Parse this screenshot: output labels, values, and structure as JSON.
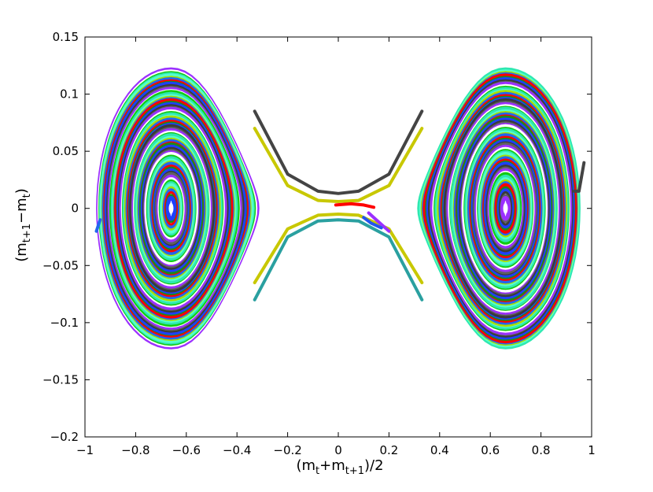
{
  "chart_data": {
    "type": "line",
    "description_of_marks": "phase-space orbits: closed concentric loops around two centres plus open separatrix-like curves through the saddle",
    "xlabel": {
      "base": "(m",
      "s1": "t",
      "mid": "+m",
      "s2": "t+1",
      "tail": ")/2"
    },
    "ylabel": {
      "base": "(m",
      "s1": "t+1",
      "mid": "−m",
      "s2": "t",
      "tail": ")"
    },
    "xlim": [
      -1,
      1
    ],
    "ylim": [
      -0.2,
      0.15
    ],
    "xticks": [
      -1,
      -0.8,
      -0.6,
      -0.4,
      -0.2,
      0,
      0.2,
      0.4,
      0.6,
      0.8,
      1
    ],
    "xtick_labels": [
      "−1",
      "−0.8",
      "−0.6",
      "−0.4",
      "−0.2",
      "0",
      "0.2",
      "0.4",
      "0.6",
      "0.8",
      "1"
    ],
    "yticks": [
      -0.2,
      -0.15,
      -0.1,
      -0.05,
      0,
      0.05,
      0.1,
      0.15
    ],
    "ytick_labels": [
      "−0.2",
      "−0.15",
      "−0.1",
      "−0.05",
      "0",
      "0.05",
      "0.1",
      "0.15"
    ],
    "grid": false,
    "centers": [
      {
        "x": -0.66,
        "y": 0
      },
      {
        "x": 0.66,
        "y": 0
      }
    ],
    "orbit_extent": {
      "x_half_width": [
        0.008,
        0.29
      ],
      "y_half_height": [
        0.006,
        0.122
      ]
    },
    "orbit_colors": [
      "#1f3fff",
      "#11cc11",
      "#ff0000",
      "#9b30ff",
      "#aadd00",
      "#3a3a3a",
      "#2ee8b0",
      "#1a8a1a",
      "#ffffff",
      "#2266ee",
      "#606060",
      "#55ffcc"
    ],
    "open_curves": [
      {
        "color": "#444444",
        "points": [
          [
            -0.33,
            0.085
          ],
          [
            -0.2,
            0.03
          ],
          [
            -0.08,
            0.015
          ],
          [
            0,
            0.013
          ],
          [
            0.08,
            0.015
          ],
          [
            0.2,
            0.03
          ],
          [
            0.33,
            0.085
          ]
        ]
      },
      {
        "color": "#c8c800",
        "points": [
          [
            -0.33,
            0.07
          ],
          [
            -0.2,
            0.02
          ],
          [
            -0.08,
            0.007
          ],
          [
            0,
            0.006
          ],
          [
            0.08,
            0.007
          ],
          [
            0.2,
            0.02
          ],
          [
            0.33,
            0.07
          ]
        ]
      },
      {
        "color": "#c8c800",
        "points": [
          [
            -0.33,
            -0.065
          ],
          [
            -0.2,
            -0.018
          ],
          [
            -0.08,
            -0.006
          ],
          [
            0,
            -0.005
          ],
          [
            0.08,
            -0.006
          ],
          [
            0.2,
            -0.018
          ],
          [
            0.33,
            -0.065
          ]
        ]
      },
      {
        "color": "#2aa0a0",
        "points": [
          [
            -0.33,
            -0.08
          ],
          [
            -0.2,
            -0.025
          ],
          [
            -0.08,
            -0.011
          ],
          [
            0,
            -0.01
          ],
          [
            0.08,
            -0.011
          ],
          [
            0.2,
            -0.025
          ],
          [
            0.33,
            -0.08
          ]
        ]
      },
      {
        "color": "#ff0000",
        "points": [
          [
            -0.01,
            0.003
          ],
          [
            0.05,
            0.004
          ],
          [
            0.1,
            0.003
          ],
          [
            0.14,
            0.001
          ]
        ]
      },
      {
        "color": "#9b30ff",
        "points": [
          [
            0.12,
            -0.004
          ],
          [
            0.16,
            -0.012
          ],
          [
            0.2,
            -0.02
          ]
        ]
      },
      {
        "color": "#2255ee",
        "points": [
          [
            0.1,
            -0.008
          ],
          [
            0.13,
            -0.013
          ],
          [
            0.17,
            -0.017
          ]
        ]
      },
      {
        "color": "#2266ee",
        "points": [
          [
            -0.955,
            -0.02
          ],
          [
            -0.94,
            -0.01
          ]
        ]
      },
      {
        "color": "#444444",
        "points": [
          [
            0.93,
            0.015
          ],
          [
            0.95,
            0.015
          ],
          [
            0.97,
            0.04
          ]
        ]
      }
    ]
  }
}
